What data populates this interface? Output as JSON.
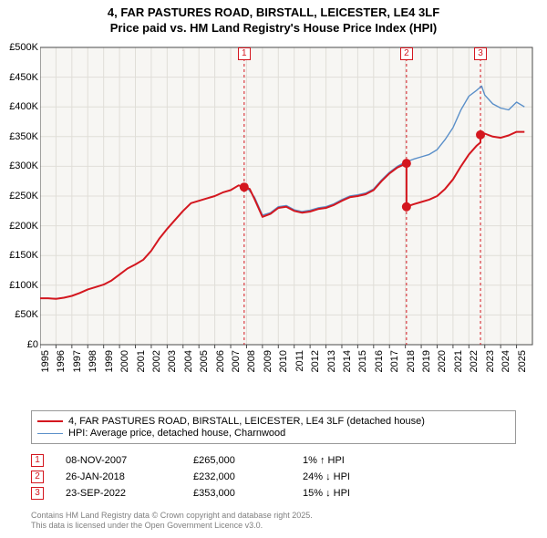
{
  "title_line1": "4, FAR PASTURES ROAD, BIRSTALL, LEICESTER, LE4 3LF",
  "title_line2": "Price paid vs. HM Land Registry's House Price Index (HPI)",
  "chart": {
    "type": "line",
    "background_color": "#ffffff",
    "plot_background_color": "#f7f6f3",
    "grid_color": "#e0ded8",
    "axis_color": "#4a4a4a",
    "x_min": 1995,
    "x_max": 2026,
    "y_min": 0,
    "y_max": 500000,
    "y_tick_step": 50000,
    "y_tick_labels": [
      "£0",
      "£50K",
      "£100K",
      "£150K",
      "£200K",
      "£250K",
      "£300K",
      "£350K",
      "£400K",
      "£450K",
      "£500K"
    ],
    "x_ticks": [
      1995,
      1996,
      1997,
      1998,
      1999,
      2000,
      2001,
      2002,
      2003,
      2004,
      2005,
      2006,
      2007,
      2008,
      2009,
      2010,
      2011,
      2012,
      2013,
      2014,
      2015,
      2016,
      2017,
      2018,
      2019,
      2020,
      2021,
      2022,
      2023,
      2024,
      2025
    ],
    "label_fontsize": 11,
    "series": [
      {
        "name": "price_paid",
        "color": "#d4171f",
        "width": 2,
        "data": [
          [
            1995.0,
            78000
          ],
          [
            1995.5,
            78000
          ],
          [
            1996.0,
            77000
          ],
          [
            1996.5,
            79000
          ],
          [
            1997.0,
            82000
          ],
          [
            1997.5,
            87000
          ],
          [
            1998.0,
            93000
          ],
          [
            1998.5,
            97000
          ],
          [
            1999.0,
            101000
          ],
          [
            1999.5,
            108000
          ],
          [
            2000.0,
            118000
          ],
          [
            2000.5,
            128000
          ],
          [
            2001.0,
            135000
          ],
          [
            2001.5,
            143000
          ],
          [
            2002.0,
            158000
          ],
          [
            2002.5,
            178000
          ],
          [
            2003.0,
            195000
          ],
          [
            2003.5,
            210000
          ],
          [
            2004.0,
            225000
          ],
          [
            2004.5,
            238000
          ],
          [
            2005.0,
            242000
          ],
          [
            2005.5,
            246000
          ],
          [
            2006.0,
            250000
          ],
          [
            2006.5,
            256000
          ],
          [
            2007.0,
            260000
          ],
          [
            2007.5,
            268000
          ],
          [
            2007.85,
            265000
          ],
          [
            2008.2,
            262000
          ],
          [
            2008.5,
            245000
          ],
          [
            2009.0,
            215000
          ],
          [
            2009.5,
            220000
          ],
          [
            2010.0,
            230000
          ],
          [
            2010.5,
            232000
          ],
          [
            2011.0,
            225000
          ],
          [
            2011.5,
            222000
          ],
          [
            2012.0,
            224000
          ],
          [
            2012.5,
            228000
          ],
          [
            2013.0,
            230000
          ],
          [
            2013.5,
            235000
          ],
          [
            2014.0,
            242000
          ],
          [
            2014.5,
            248000
          ],
          [
            2015.0,
            250000
          ],
          [
            2015.5,
            253000
          ],
          [
            2016.0,
            260000
          ],
          [
            2016.5,
            275000
          ],
          [
            2017.0,
            288000
          ],
          [
            2017.5,
            298000
          ],
          [
            2018.07,
            305000
          ],
          [
            2018.07,
            232000
          ],
          [
            2018.5,
            236000
          ],
          [
            2019.0,
            240000
          ],
          [
            2019.5,
            244000
          ],
          [
            2020.0,
            250000
          ],
          [
            2020.5,
            262000
          ],
          [
            2021.0,
            278000
          ],
          [
            2021.5,
            300000
          ],
          [
            2022.0,
            320000
          ],
          [
            2022.5,
            335000
          ],
          [
            2022.73,
            340000
          ],
          [
            2022.73,
            353000
          ],
          [
            2023.0,
            355000
          ],
          [
            2023.5,
            350000
          ],
          [
            2024.0,
            348000
          ],
          [
            2024.5,
            352000
          ],
          [
            2025.0,
            358000
          ],
          [
            2025.5,
            358000
          ]
        ]
      },
      {
        "name": "hpi",
        "color": "#5a8fc9",
        "width": 1.4,
        "data": [
          [
            1995.0,
            78000
          ],
          [
            1995.5,
            78000
          ],
          [
            1996.0,
            77500
          ],
          [
            1996.5,
            79000
          ],
          [
            1997.0,
            82000
          ],
          [
            1997.5,
            87000
          ],
          [
            1998.0,
            93000
          ],
          [
            1998.5,
            97000
          ],
          [
            1999.0,
            101000
          ],
          [
            1999.5,
            108000
          ],
          [
            2000.0,
            118000
          ],
          [
            2000.5,
            128000
          ],
          [
            2001.0,
            135000
          ],
          [
            2001.5,
            143000
          ],
          [
            2002.0,
            158000
          ],
          [
            2002.5,
            178000
          ],
          [
            2003.0,
            195000
          ],
          [
            2003.5,
            210000
          ],
          [
            2004.0,
            225000
          ],
          [
            2004.5,
            238000
          ],
          [
            2005.0,
            242000
          ],
          [
            2005.5,
            246000
          ],
          [
            2006.0,
            250000
          ],
          [
            2006.5,
            256000
          ],
          [
            2007.0,
            260000
          ],
          [
            2007.5,
            268000
          ],
          [
            2008.0,
            265000
          ],
          [
            2008.5,
            248000
          ],
          [
            2009.0,
            218000
          ],
          [
            2009.5,
            222000
          ],
          [
            2010.0,
            232000
          ],
          [
            2010.5,
            234000
          ],
          [
            2011.0,
            227000
          ],
          [
            2011.5,
            224000
          ],
          [
            2012.0,
            226000
          ],
          [
            2012.5,
            230000
          ],
          [
            2013.0,
            232000
          ],
          [
            2013.5,
            237000
          ],
          [
            2014.0,
            244000
          ],
          [
            2014.5,
            250000
          ],
          [
            2015.0,
            252000
          ],
          [
            2015.5,
            255000
          ],
          [
            2016.0,
            262000
          ],
          [
            2016.5,
            277000
          ],
          [
            2017.0,
            290000
          ],
          [
            2017.5,
            300000
          ],
          [
            2018.0,
            307000
          ],
          [
            2018.5,
            312000
          ],
          [
            2019.0,
            316000
          ],
          [
            2019.5,
            320000
          ],
          [
            2020.0,
            328000
          ],
          [
            2020.5,
            345000
          ],
          [
            2021.0,
            365000
          ],
          [
            2021.5,
            395000
          ],
          [
            2022.0,
            418000
          ],
          [
            2022.5,
            428000
          ],
          [
            2022.8,
            435000
          ],
          [
            2023.0,
            420000
          ],
          [
            2023.5,
            405000
          ],
          [
            2024.0,
            398000
          ],
          [
            2024.5,
            395000
          ],
          [
            2025.0,
            408000
          ],
          [
            2025.5,
            400000
          ]
        ]
      }
    ],
    "event_lines": [
      {
        "x": 2007.85,
        "y_marker": 490000,
        "label": "1",
        "color": "#d4171f"
      },
      {
        "x": 2018.07,
        "y_marker": 490000,
        "label": "2",
        "color": "#d4171f"
      },
      {
        "x": 2022.73,
        "y_marker": 490000,
        "label": "3",
        "color": "#d4171f"
      }
    ],
    "event_line_color": "#d4171f",
    "event_line_dash": "3,3",
    "sale_markers": [
      {
        "x": 2007.85,
        "y": 265000
      },
      {
        "x": 2018.07,
        "y": 305000
      },
      {
        "x": 2018.07,
        "y": 232000
      },
      {
        "x": 2022.73,
        "y": 353000
      }
    ],
    "sale_marker_color": "#d4171f",
    "sale_marker_size": 5
  },
  "legend": {
    "series1_label": "4, FAR PASTURES ROAD, BIRSTALL, LEICESTER, LE4 3LF (detached house)",
    "series1_color": "#d4171f",
    "series2_label": "HPI: Average price, detached house, Charnwood",
    "series2_color": "#5a8fc9"
  },
  "events": [
    {
      "n": "1",
      "date": "08-NOV-2007",
      "price": "£265,000",
      "delta": "1% ↑ HPI",
      "color": "#d4171f"
    },
    {
      "n": "2",
      "date": "26-JAN-2018",
      "price": "£232,000",
      "delta": "24% ↓ HPI",
      "color": "#d4171f"
    },
    {
      "n": "3",
      "date": "23-SEP-2022",
      "price": "£353,000",
      "delta": "15% ↓ HPI",
      "color": "#d4171f"
    }
  ],
  "footer_line1": "Contains HM Land Registry data © Crown copyright and database right 2025.",
  "footer_line2": "This data is licensed under the Open Government Licence v3.0."
}
